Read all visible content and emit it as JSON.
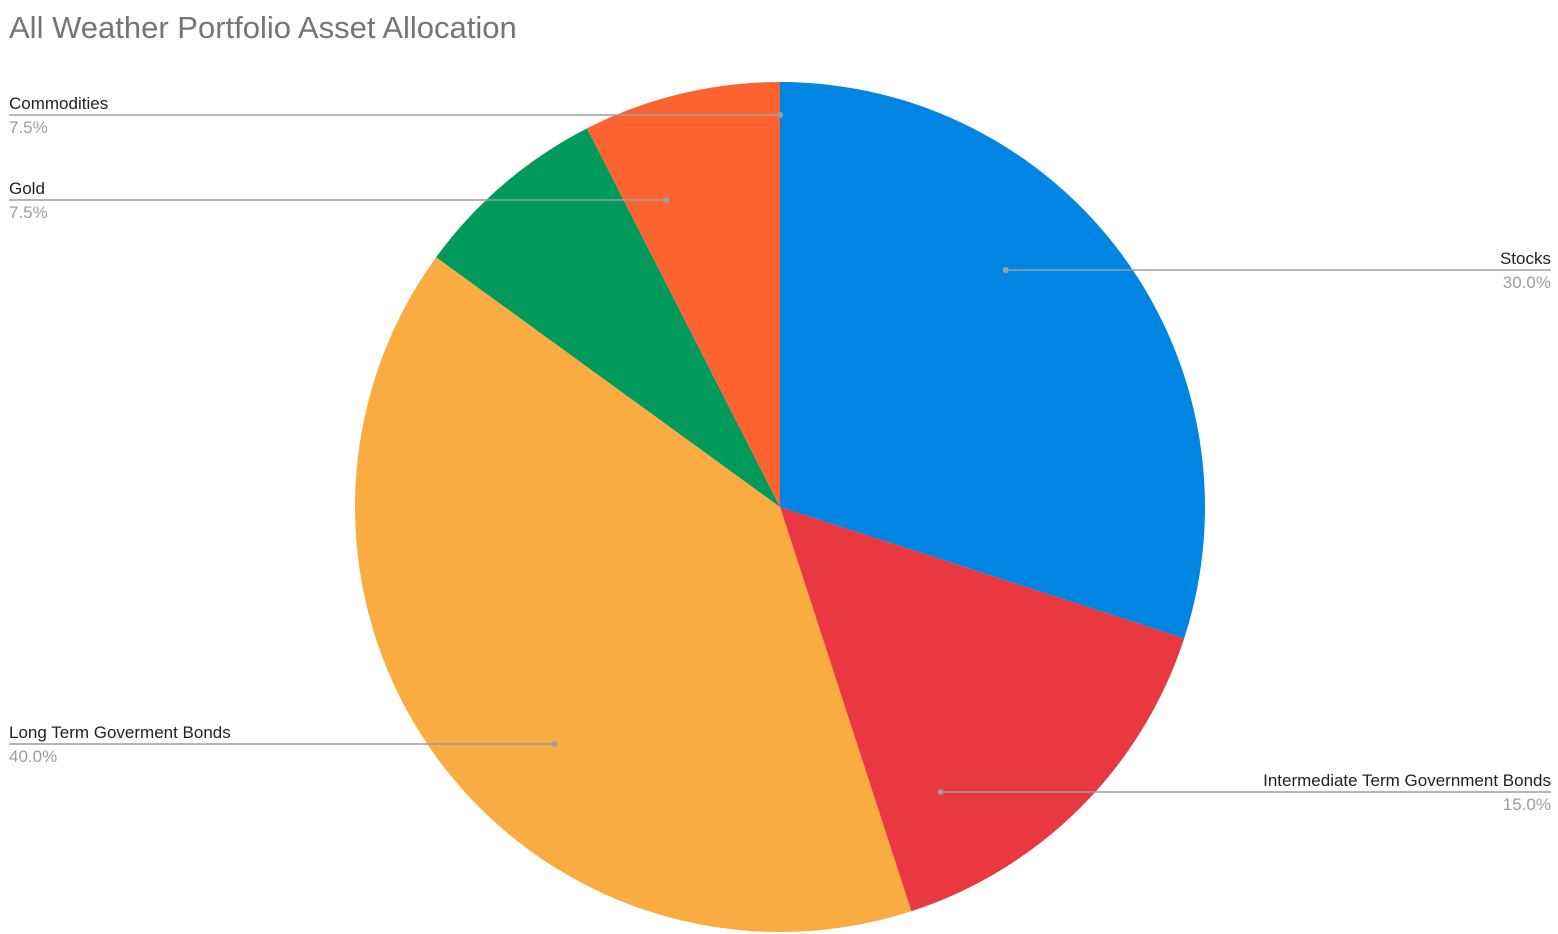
{
  "chart_data": {
    "type": "pie",
    "title": "All Weather Portfolio Asset Allocation",
    "legend": "labels",
    "slices": [
      {
        "name": "Stocks",
        "value": 30.0,
        "label": "30.0%",
        "color": "#0086e2"
      },
      {
        "name": "Intermediate Term Government Bonds",
        "value": 15.0,
        "label": "15.0%",
        "color": "#e9383f"
      },
      {
        "name": "Long Term Goverment Bonds",
        "value": 40.0,
        "label": "40.0%",
        "color": "#faab41"
      },
      {
        "name": "Gold",
        "value": 7.5,
        "label": "7.5%",
        "color": "#009a5d"
      },
      {
        "name": "Commodities",
        "value": 7.5,
        "label": "7.5%",
        "color": "#fd6331"
      }
    ]
  }
}
